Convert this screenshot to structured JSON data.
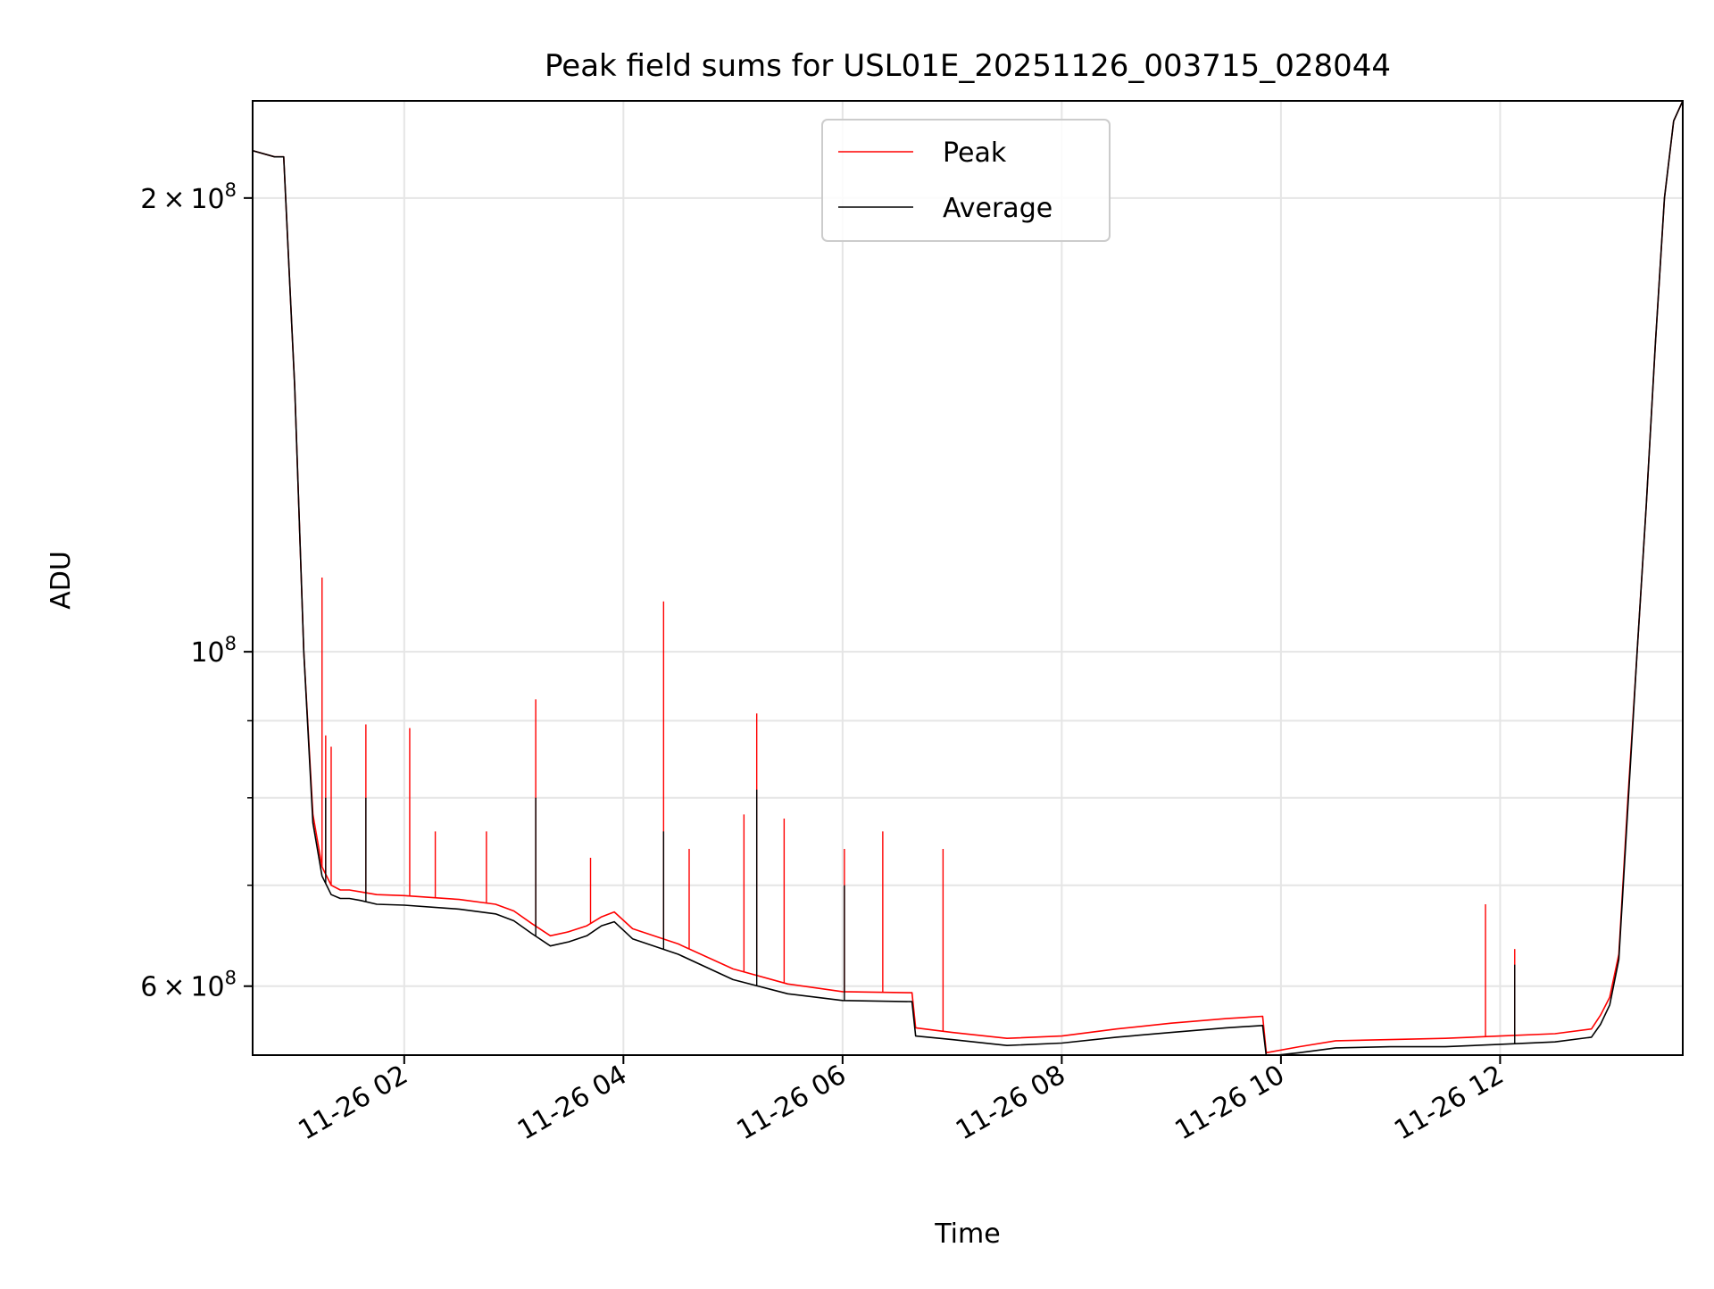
{
  "chart_data": {
    "type": "line",
    "title": "Peak field sums for USL01E_20251126_003715_028044",
    "xlabel": "Time",
    "ylabel": "ADU",
    "yscale": "log",
    "ylim": [
      54000000,
      232000000
    ],
    "xlim": [
      "2025-11-26T00:37:00",
      "2025-11-26T13:40:00"
    ],
    "grid": true,
    "legend": {
      "position": "top-center"
    },
    "x_ticks": [
      {
        "x": "2025-11-26T02:00:00",
        "label": "11-26 02"
      },
      {
        "x": "2025-11-26T04:00:00",
        "label": "11-26 04"
      },
      {
        "x": "2025-11-26T06:00:00",
        "label": "11-26 06"
      },
      {
        "x": "2025-11-26T08:00:00",
        "label": "11-26 08"
      },
      {
        "x": "2025-11-26T10:00:00",
        "label": "11-26 10"
      },
      {
        "x": "2025-11-26T12:00:00",
        "label": "11-26 12"
      }
    ],
    "y_ticks": [
      {
        "value": 200000000,
        "mant": "2",
        "exp": "8"
      },
      {
        "value": 100000000,
        "mant": "",
        "exp": "8"
      },
      {
        "value": 60000000,
        "mant": "6",
        "exp": "8"
      }
    ],
    "y_minor_ticks": [
      70000000,
      80000000,
      90000000
    ],
    "series": [
      {
        "name": "Peak",
        "color": "#ff0000",
        "x": [
          "2025-11-26T00:37:00",
          "2025-11-26T00:49:00",
          "2025-11-26T00:54:00",
          "2025-11-26T01:00:00",
          "2025-11-26T01:05:00",
          "2025-11-26T01:10:00",
          "2025-11-26T01:15:00",
          "2025-11-26T01:20:00",
          "2025-11-26T01:25:00",
          "2025-11-26T01:30:00",
          "2025-11-26T01:36:00",
          "2025-11-26T01:45:00",
          "2025-11-26T02:00:00",
          "2025-11-26T02:30:00",
          "2025-11-26T02:50:00",
          "2025-11-26T03:00:00",
          "2025-11-26T03:10:00",
          "2025-11-26T03:20:00",
          "2025-11-26T03:30:00",
          "2025-11-26T03:40:00",
          "2025-11-26T03:48:00",
          "2025-11-26T03:55:00",
          "2025-11-26T04:05:00",
          "2025-11-26T04:30:00",
          "2025-11-26T05:00:00",
          "2025-11-26T05:30:00",
          "2025-11-26T06:00:00",
          "2025-11-26T06:38:00",
          "2025-11-26T06:40:00",
          "2025-11-26T07:00:00",
          "2025-11-26T07:30:00",
          "2025-11-26T08:00:00",
          "2025-11-26T08:30:00",
          "2025-11-26T09:00:00",
          "2025-11-26T09:30:00",
          "2025-11-26T09:50:00",
          "2025-11-26T09:52:00",
          "2025-11-26T10:10:00",
          "2025-11-26T10:30:00",
          "2025-11-26T11:00:00",
          "2025-11-26T11:30:00",
          "2025-11-26T12:00:00",
          "2025-11-26T12:30:00",
          "2025-11-26T12:50:00",
          "2025-11-26T12:55:00",
          "2025-11-26T13:00:00",
          "2025-11-26T13:05:00",
          "2025-11-26T13:10:00",
          "2025-11-26T13:15:00",
          "2025-11-26T13:20:00",
          "2025-11-26T13:25:00",
          "2025-11-26T13:30:00",
          "2025-11-26T13:35:00",
          "2025-11-26T13:40:00"
        ],
        "y": [
          215000000,
          213000000,
          213000000,
          150000000,
          100000000,
          78000000,
          72000000,
          70000000,
          69500000,
          69500000,
          69300000,
          69000000,
          68900000,
          68500000,
          68000000,
          67300000,
          66000000,
          64800000,
          65200000,
          65800000,
          66700000,
          67200000,
          65500000,
          64000000,
          61600000,
          60200000,
          59500000,
          59400000,
          56300000,
          55900000,
          55400000,
          55600000,
          56200000,
          56700000,
          57100000,
          57300000,
          54200000,
          54700000,
          55200000,
          55300000,
          55400000,
          55600000,
          55800000,
          56200000,
          57400000,
          59000000,
          63000000,
          80000000,
          100000000,
          125000000,
          160000000,
          200000000,
          225000000,
          232000000
        ],
        "spikes": [
          {
            "x": "2025-11-26T01:15:00",
            "y": 112000000
          },
          {
            "x": "2025-11-26T01:17:00",
            "y": 88000000
          },
          {
            "x": "2025-11-26T01:20:00",
            "y": 86500000
          },
          {
            "x": "2025-11-26T01:39:00",
            "y": 89500000
          },
          {
            "x": "2025-11-26T02:03:00",
            "y": 89000000
          },
          {
            "x": "2025-11-26T02:17:00",
            "y": 76000000
          },
          {
            "x": "2025-11-26T02:45:00",
            "y": 76000000
          },
          {
            "x": "2025-11-26T03:12:00",
            "y": 93000000
          },
          {
            "x": "2025-11-26T03:42:00",
            "y": 73000000
          },
          {
            "x": "2025-11-26T04:22:00",
            "y": 108000000
          },
          {
            "x": "2025-11-26T04:36:00",
            "y": 74000000
          },
          {
            "x": "2025-11-26T05:06:00",
            "y": 78000000
          },
          {
            "x": "2025-11-26T05:13:00",
            "y": 91000000
          },
          {
            "x": "2025-11-26T05:28:00",
            "y": 77500000
          },
          {
            "x": "2025-11-26T06:01:00",
            "y": 74000000
          },
          {
            "x": "2025-11-26T06:22:00",
            "y": 76000000
          },
          {
            "x": "2025-11-26T06:55:00",
            "y": 74000000
          },
          {
            "x": "2025-11-26T11:52:00",
            "y": 68000000
          },
          {
            "x": "2025-11-26T12:08:00",
            "y": 63500000
          }
        ]
      },
      {
        "name": "Average",
        "color": "#000000",
        "x": [
          "2025-11-26T00:37:00",
          "2025-11-26T00:49:00",
          "2025-11-26T00:54:00",
          "2025-11-26T01:00:00",
          "2025-11-26T01:05:00",
          "2025-11-26T01:10:00",
          "2025-11-26T01:15:00",
          "2025-11-26T01:20:00",
          "2025-11-26T01:25:00",
          "2025-11-26T01:30:00",
          "2025-11-26T01:36:00",
          "2025-11-26T01:45:00",
          "2025-11-26T02:00:00",
          "2025-11-26T02:30:00",
          "2025-11-26T02:50:00",
          "2025-11-26T03:00:00",
          "2025-11-26T03:10:00",
          "2025-11-26T03:20:00",
          "2025-11-26T03:30:00",
          "2025-11-26T03:40:00",
          "2025-11-26T03:48:00",
          "2025-11-26T03:55:00",
          "2025-11-26T04:05:00",
          "2025-11-26T04:30:00",
          "2025-11-26T05:00:00",
          "2025-11-26T05:30:00",
          "2025-11-26T06:00:00",
          "2025-11-26T06:38:00",
          "2025-11-26T06:40:00",
          "2025-11-26T07:00:00",
          "2025-11-26T07:30:00",
          "2025-11-26T08:00:00",
          "2025-11-26T08:30:00",
          "2025-11-26T09:00:00",
          "2025-11-26T09:30:00",
          "2025-11-26T09:50:00",
          "2025-11-26T09:52:00",
          "2025-11-26T10:10:00",
          "2025-11-26T10:30:00",
          "2025-11-26T11:00:00",
          "2025-11-26T11:30:00",
          "2025-11-26T12:00:00",
          "2025-11-26T12:30:00",
          "2025-11-26T12:50:00",
          "2025-11-26T12:55:00",
          "2025-11-26T13:00:00",
          "2025-11-26T13:05:00",
          "2025-11-26T13:10:00",
          "2025-11-26T13:15:00",
          "2025-11-26T13:20:00",
          "2025-11-26T13:25:00",
          "2025-11-26T13:30:00",
          "2025-11-26T13:35:00",
          "2025-11-26T13:40:00"
        ],
        "y": [
          215000000,
          213000000,
          213000000,
          150000000,
          100000000,
          77000000,
          71000000,
          69000000,
          68600000,
          68600000,
          68400000,
          68000000,
          67900000,
          67500000,
          67000000,
          66300000,
          65000000,
          63800000,
          64200000,
          64800000,
          65800000,
          66200000,
          64500000,
          63000000,
          60600000,
          59300000,
          58700000,
          58600000,
          55600000,
          55300000,
          54800000,
          55000000,
          55500000,
          55900000,
          56300000,
          56500000,
          53900000,
          54200000,
          54600000,
          54700000,
          54700000,
          54900000,
          55100000,
          55500000,
          56600000,
          58300000,
          62500000,
          79000000,
          100000000,
          125000000,
          160000000,
          200000000,
          225000000,
          232000000
        ],
        "spikes": [
          {
            "x": "2025-11-26T01:17:00",
            "y": 80000000
          },
          {
            "x": "2025-11-26T01:39:00",
            "y": 80000000
          },
          {
            "x": "2025-11-26T03:12:00",
            "y": 80000000
          },
          {
            "x": "2025-11-26T04:22:00",
            "y": 76000000
          },
          {
            "x": "2025-11-26T05:13:00",
            "y": 81000000
          },
          {
            "x": "2025-11-26T06:01:00",
            "y": 70000000
          },
          {
            "x": "2025-11-26T12:08:00",
            "y": 62000000
          }
        ]
      }
    ]
  }
}
